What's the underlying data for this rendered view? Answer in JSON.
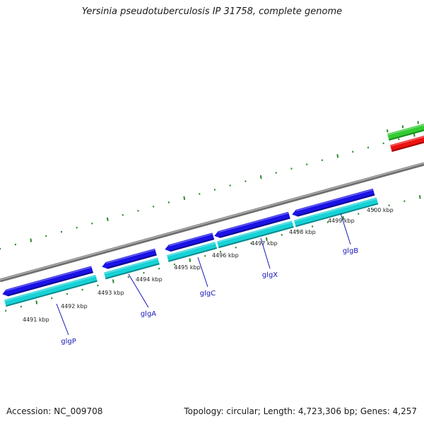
{
  "title": "Yersinia pseudotuberculosis IP 31758, complete genome",
  "accession_text": "Accession: NC_009708",
  "summary_text": "Topology: circular; Length: 4,723,306 bp; Genes: 4,257",
  "colors": {
    "backbone": "#8a8a8a",
    "forward_gene": "#1a12e6",
    "forward_gene_dark": "#0c0890",
    "reverse_gene": "#16d2d6",
    "reverse_gene_dark": "#0b8a8e",
    "other_forward": "#33cc33",
    "other_reverse": "#ee1111",
    "tick_green": "#2a8a2a",
    "label_text": "#1515b8"
  },
  "ticks": [
    {
      "label": "4491 kbp"
    },
    {
      "label": "4492 kbp"
    },
    {
      "label": "4493 kbp"
    },
    {
      "label": "4494 kbp"
    },
    {
      "label": "4495 kbp"
    },
    {
      "label": "4496 kbp"
    },
    {
      "label": "4497 kbp"
    },
    {
      "label": "4498 kbp"
    },
    {
      "label": "4499 kbp"
    },
    {
      "label": "4500 kbp"
    }
  ],
  "genes": [
    {
      "name": "glgP"
    },
    {
      "name": "glgA"
    },
    {
      "name": "glgC"
    },
    {
      "name": "glgX"
    },
    {
      "name": "glgB"
    }
  ]
}
